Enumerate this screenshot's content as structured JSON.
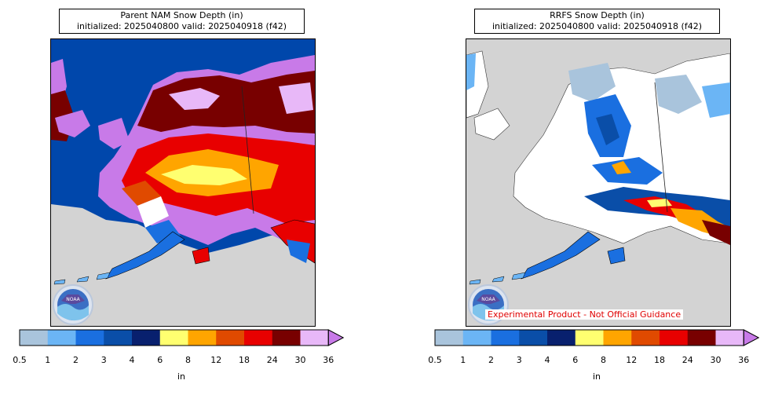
{
  "panels": [
    {
      "id": "nam",
      "title_line1": "Parent NAM Snow Depth (in)",
      "title_line2": "initialized: 2025040800 valid: 2025040918 (f42)"
    },
    {
      "id": "rrfs",
      "title_line1": "RRFS Snow Depth (in)",
      "title_line2": "initialized: 2025040800 valid: 2025040918 (f42)",
      "disclaimer": "Experimental Product - Not Official Guidance"
    }
  ],
  "colorbar": {
    "ticks": [
      "0.5",
      "1",
      "2",
      "3",
      "4",
      "6",
      "8",
      "12",
      "18",
      "24",
      "30",
      "36"
    ],
    "colors": [
      "#a9c4dc",
      "#6bb5f5",
      "#1a6fe0",
      "#0a4ea8",
      "#08206e",
      "#ffff70",
      "#ffa500",
      "#e04a00",
      "#e80000",
      "#780000",
      "#e8b8f8"
    ],
    "extend_color": "#c87ae8",
    "unit": "in"
  },
  "colors": {
    "ocean_nam": "#0047ab",
    "land_nosnow": "#d3d3d3",
    "snow_white": "#ffffff"
  },
  "logo": {
    "text": "NOAA"
  }
}
